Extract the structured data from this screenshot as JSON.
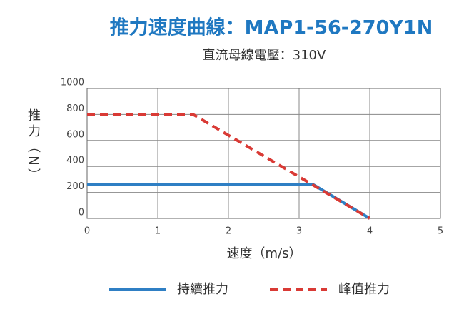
{
  "chart_data": {
    "type": "line",
    "title": "推力速度曲線：MAP1-56-270Y1N",
    "subtitle": "直流母線電壓：310V",
    "x_label": "速度（m/s）",
    "y_label": "推力（N）",
    "xlim": [
      0,
      5
    ],
    "xticks": [
      0,
      1,
      2,
      3,
      4,
      5
    ],
    "ylim": [
      0,
      1000
    ],
    "yticks": [
      0,
      200,
      400,
      600,
      800,
      1000
    ],
    "grid": true,
    "legend": "bottom",
    "series": [
      {
        "name": "持續推力",
        "color": "#2f7fc4",
        "dash": false,
        "x": [
          0,
          3.2,
          4
        ],
        "values": [
          260,
          260,
          0
        ]
      },
      {
        "name": "峰值推力",
        "color": "#d93a35",
        "dash": true,
        "x": [
          0,
          1.5,
          4
        ],
        "values": [
          800,
          800,
          0
        ]
      }
    ]
  }
}
